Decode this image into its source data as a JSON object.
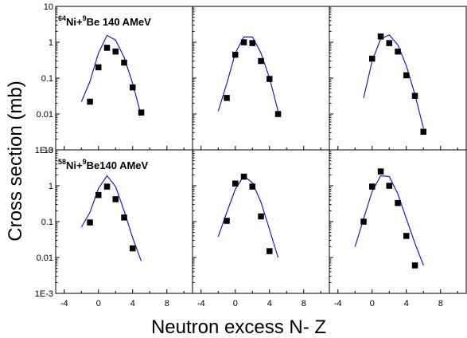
{
  "chart_data": {
    "type": "scatter",
    "xlabel": "Neutron excess N- Z",
    "ylabel": "Cross section (mb)",
    "x_ticks": [
      -4,
      0,
      4,
      8
    ],
    "x_tick_labels": [
      "-4",
      "0",
      "4",
      "8"
    ],
    "xlim": [
      -5,
      11
    ],
    "y_scale": "log",
    "ylim": [
      0.001,
      10
    ],
    "y_ticks": [
      0.001,
      0.01,
      0.1,
      1,
      10
    ],
    "y_tick_labels": [
      "1E-3",
      "0.01",
      "0.1",
      "1",
      "10"
    ],
    "grid": false,
    "legend": "none",
    "colors": {
      "points": "#000000",
      "curve": "#1a1acc",
      "axes": "#000000"
    },
    "panels": [
      {
        "row": 0,
        "col": 0,
        "annotation": {
          "mass1": "64",
          "el1": "Ni+",
          "mass2": "9",
          "el2": "Be 140 AMeV"
        },
        "points": [
          [
            -1,
            0.022
          ],
          [
            0,
            0.2
          ],
          [
            1,
            0.7
          ],
          [
            2,
            0.55
          ],
          [
            3,
            0.27
          ],
          [
            4,
            0.055
          ],
          [
            5,
            0.011
          ]
        ],
        "curve": [
          [
            -2,
            0.022
          ],
          [
            -1,
            0.08
          ],
          [
            0,
            0.5
          ],
          [
            1,
            1.55
          ],
          [
            2,
            1.15
          ],
          [
            3,
            0.38
          ],
          [
            4,
            0.07
          ],
          [
            5,
            0.009
          ]
        ]
      },
      {
        "row": 0,
        "col": 1,
        "points": [
          [
            -1,
            0.028
          ],
          [
            0,
            0.45
          ],
          [
            1,
            1.0
          ],
          [
            2,
            0.95
          ],
          [
            3,
            0.3
          ],
          [
            4,
            0.095
          ],
          [
            5,
            0.01
          ]
        ],
        "curve": [
          [
            -2,
            0.012
          ],
          [
            -1,
            0.07
          ],
          [
            0,
            0.5
          ],
          [
            1,
            1.4
          ],
          [
            2,
            1.4
          ],
          [
            3,
            0.5
          ],
          [
            4,
            0.1
          ],
          [
            5,
            0.012
          ]
        ]
      },
      {
        "row": 0,
        "col": 2,
        "points": [
          [
            0,
            0.35
          ],
          [
            1,
            1.45
          ],
          [
            2,
            0.95
          ],
          [
            3,
            0.55
          ],
          [
            4,
            0.12
          ],
          [
            5,
            0.032
          ],
          [
            6,
            0.0032
          ]
        ],
        "curve": [
          [
            -1,
            0.028
          ],
          [
            0,
            0.3
          ],
          [
            1,
            1.25
          ],
          [
            2,
            1.6
          ],
          [
            3,
            0.85
          ],
          [
            4,
            0.22
          ],
          [
            5,
            0.035
          ],
          [
            6,
            0.004
          ]
        ]
      },
      {
        "row": 1,
        "col": 0,
        "annotation": {
          "mass1": "58",
          "el1": "Ni+",
          "mass2": "9",
          "el2": "Be140 AMeV"
        },
        "points": [
          [
            -1,
            0.095
          ],
          [
            0,
            0.55
          ],
          [
            1,
            0.95
          ],
          [
            2,
            0.42
          ],
          [
            3,
            0.13
          ],
          [
            4,
            0.018
          ]
        ],
        "curve": [
          [
            -2,
            0.07
          ],
          [
            -1,
            0.18
          ],
          [
            0,
            0.85
          ],
          [
            1,
            1.9
          ],
          [
            2,
            0.95
          ],
          [
            3,
            0.2
          ],
          [
            4,
            0.035
          ],
          [
            5,
            0.008
          ]
        ]
      },
      {
        "row": 1,
        "col": 1,
        "points": [
          [
            -1,
            0.105
          ],
          [
            0,
            1.15
          ],
          [
            1,
            1.8
          ],
          [
            2,
            0.95
          ],
          [
            3,
            0.14
          ],
          [
            4,
            0.015
          ]
        ],
        "curve": [
          [
            -2,
            0.038
          ],
          [
            -1,
            0.18
          ],
          [
            0,
            0.8
          ],
          [
            1,
            1.9
          ],
          [
            2,
            1.2
          ],
          [
            3,
            0.35
          ],
          [
            4,
            0.06
          ],
          [
            5,
            0.01
          ]
        ]
      },
      {
        "row": 1,
        "col": 2,
        "points": [
          [
            -1,
            0.1
          ],
          [
            0,
            0.95
          ],
          [
            1,
            2.5
          ],
          [
            2,
            1.0
          ],
          [
            3,
            0.33
          ],
          [
            4,
            0.04
          ],
          [
            5,
            0.006
          ]
        ],
        "curve": [
          [
            -2,
            0.02
          ],
          [
            -1,
            0.12
          ],
          [
            0,
            0.7
          ],
          [
            1,
            1.9
          ],
          [
            2,
            1.8
          ],
          [
            3,
            0.6
          ],
          [
            4,
            0.12
          ],
          [
            5,
            0.025
          ],
          [
            6,
            0.006
          ]
        ]
      }
    ]
  }
}
